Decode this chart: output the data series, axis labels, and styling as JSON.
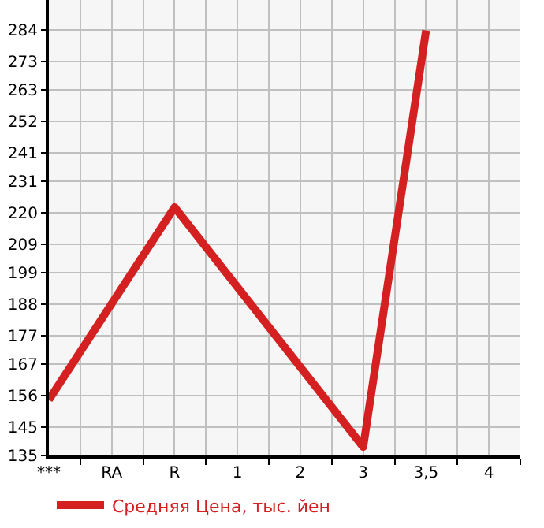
{
  "chart_data": {
    "type": "line",
    "categories": [
      "***",
      "RA",
      "R",
      "1",
      "2",
      "3",
      "3,5",
      "4"
    ],
    "series": [
      {
        "name": "Средняя Цена, тыс. йен",
        "color": "#d42020",
        "values": [
          154.5,
          null,
          222,
          null,
          null,
          138,
          284,
          null
        ]
      }
    ],
    "ylim": [
      135,
      294.6
    ],
    "yticks": [
      135,
      145,
      156,
      167,
      177,
      188,
      199,
      209,
      220,
      231,
      241,
      252,
      263,
      273,
      284
    ],
    "grid": true,
    "legend": "bottom left",
    "marker": "none",
    "line_style": "solid"
  }
}
